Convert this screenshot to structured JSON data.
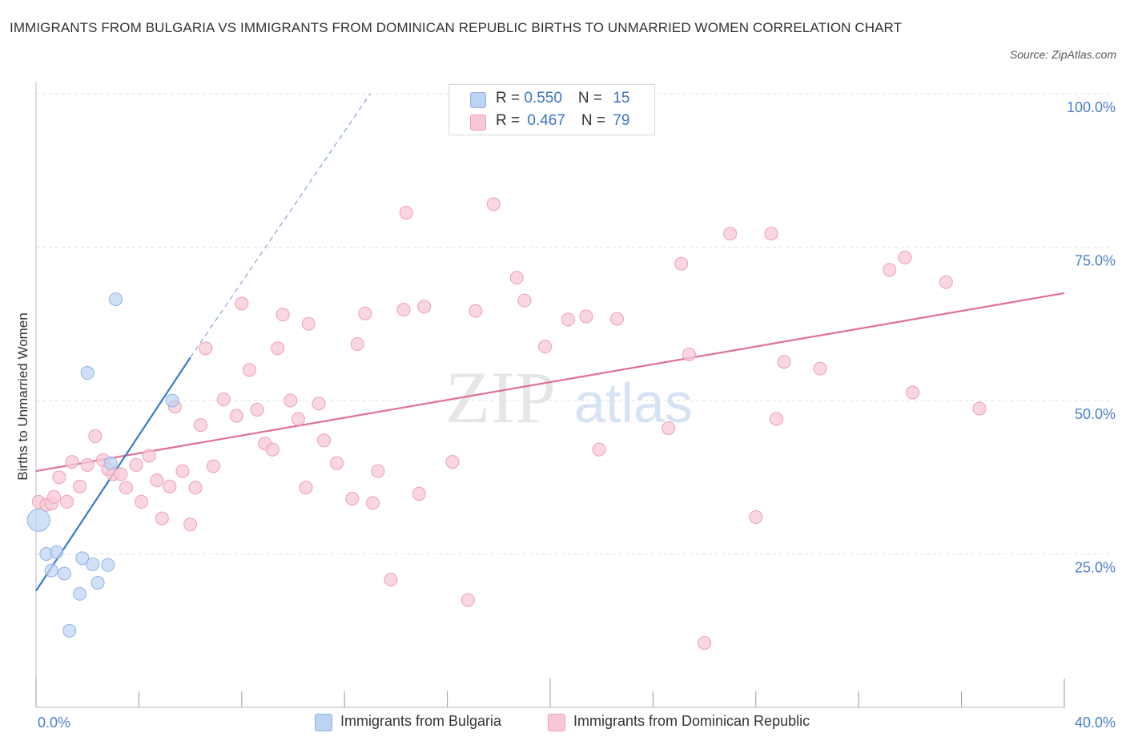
{
  "header": {
    "title": "IMMIGRANTS FROM BULGARIA VS IMMIGRANTS FROM DOMINICAN REPUBLIC BIRTHS TO UNMARRIED WOMEN CORRELATION CHART",
    "source": "Source: ZipAtlas.com"
  },
  "watermark": {
    "zip": "ZIP",
    "atlas": "atlas"
  },
  "legend": {
    "rows": [
      {
        "r_label": "R = ",
        "r_value": "0.550",
        "n_label": "N = ",
        "n_value": "15"
      },
      {
        "r_label": "R = ",
        "r_value": "0.467",
        "n_label": "N = ",
        "n_value": "79"
      }
    ],
    "series": [
      {
        "label": "Immigrants from Bulgaria"
      },
      {
        "label": "Immigrants from Dominican Republic"
      }
    ]
  },
  "chart_data": {
    "type": "scatter",
    "title": "IMMIGRANTS FROM BULGARIA VS IMMIGRANTS FROM DOMINICAN REPUBLIC BIRTHS TO UNMARRIED WOMEN CORRELATION CHART",
    "xlabel": "",
    "ylabel": "Births to Unmarried Women",
    "xlim": [
      0,
      40
    ],
    "ylim": [
      0,
      100
    ],
    "x_tick_labels": [
      "0.0%",
      "40.0%"
    ],
    "y_tick_labels": [
      "25.0%",
      "50.0%",
      "75.0%",
      "100.0%"
    ],
    "y_ticks": [
      25,
      50,
      75,
      100
    ],
    "grid": true,
    "colors": {
      "bulgaria": "#3b78cc",
      "dominican": "#e07096",
      "bulgaria_fill": "#bcd4f4",
      "dominican_fill": "#f8c8d7"
    },
    "series": [
      {
        "name": "Immigrants from Bulgaria",
        "R": 0.55,
        "N": 15,
        "trend": {
          "x": [
            0,
            6
          ],
          "y": [
            19,
            57
          ],
          "dashed_to": [
            13,
            100
          ]
        },
        "points": [
          [
            0.1,
            30.5
          ],
          [
            0.4,
            25
          ],
          [
            0.8,
            25.3
          ],
          [
            0.6,
            22.3
          ],
          [
            1.1,
            21.8
          ],
          [
            1.3,
            12.5
          ],
          [
            1.7,
            18.5
          ],
          [
            1.8,
            24.3
          ],
          [
            2.2,
            23.3
          ],
          [
            2.4,
            20.3
          ],
          [
            2.8,
            23.2
          ],
          [
            2.0,
            54.5
          ],
          [
            3.1,
            66.5
          ],
          [
            5.3,
            50
          ],
          [
            2.9,
            39.8
          ]
        ]
      },
      {
        "name": "Immigrants from Dominican Republic",
        "R": 0.467,
        "N": 79,
        "trend": {
          "x": [
            0,
            40
          ],
          "y": [
            38.5,
            67.5
          ]
        },
        "points": [
          [
            0.1,
            33.5
          ],
          [
            0.4,
            33
          ],
          [
            0.6,
            33.2
          ],
          [
            0.7,
            34.3
          ],
          [
            0.9,
            37.5
          ],
          [
            1.2,
            33.5
          ],
          [
            1.4,
            40
          ],
          [
            1.7,
            36
          ],
          [
            2.0,
            39.5
          ],
          [
            2.3,
            44.2
          ],
          [
            2.6,
            40.3
          ],
          [
            2.8,
            38.8
          ],
          [
            3.0,
            38
          ],
          [
            3.3,
            38
          ],
          [
            3.5,
            35.8
          ],
          [
            3.9,
            39.5
          ],
          [
            4.1,
            33.5
          ],
          [
            4.4,
            41
          ],
          [
            4.7,
            37
          ],
          [
            4.9,
            30.8
          ],
          [
            5.2,
            36
          ],
          [
            5.4,
            49
          ],
          [
            5.7,
            38.5
          ],
          [
            6.0,
            29.8
          ],
          [
            6.2,
            35.8
          ],
          [
            6.4,
            46
          ],
          [
            6.6,
            58.5
          ],
          [
            6.9,
            39.3
          ],
          [
            7.3,
            50.2
          ],
          [
            7.8,
            47.5
          ],
          [
            8.0,
            65.8
          ],
          [
            8.3,
            55
          ],
          [
            8.6,
            48.5
          ],
          [
            8.9,
            43
          ],
          [
            9.2,
            42
          ],
          [
            9.4,
            58.5
          ],
          [
            9.6,
            64
          ],
          [
            9.9,
            50
          ],
          [
            10.2,
            47
          ],
          [
            10.5,
            35.8
          ],
          [
            10.6,
            62.5
          ],
          [
            11.0,
            49.5
          ],
          [
            11.2,
            43.5
          ],
          [
            11.7,
            39.8
          ],
          [
            12.3,
            34
          ],
          [
            12.5,
            59.2
          ],
          [
            12.8,
            64.2
          ],
          [
            13.1,
            33.3
          ],
          [
            13.3,
            38.5
          ],
          [
            13.8,
            20.8
          ],
          [
            14.3,
            64.8
          ],
          [
            14.4,
            80.6
          ],
          [
            14.9,
            34.8
          ],
          [
            15.1,
            65.3
          ],
          [
            16.2,
            40
          ],
          [
            16.8,
            17.5
          ],
          [
            17.1,
            64.6
          ],
          [
            17.8,
            82
          ],
          [
            18.7,
            70
          ],
          [
            19.0,
            66.3
          ],
          [
            19.8,
            58.8
          ],
          [
            20.7,
            63.2
          ],
          [
            21.4,
            63.7
          ],
          [
            21.9,
            42
          ],
          [
            22.6,
            63.3
          ],
          [
            24.6,
            45.5
          ],
          [
            25.1,
            72.3
          ],
          [
            25.4,
            57.5
          ],
          [
            26.0,
            10.5
          ],
          [
            27.0,
            77.2
          ],
          [
            28.0,
            31
          ],
          [
            28.6,
            77.2
          ],
          [
            28.8,
            47
          ],
          [
            29.1,
            56.3
          ],
          [
            30.5,
            55.2
          ],
          [
            33.2,
            71.3
          ],
          [
            33.8,
            73.3
          ],
          [
            34.1,
            51.3
          ],
          [
            35.4,
            69.3
          ],
          [
            36.7,
            48.7
          ]
        ]
      }
    ]
  }
}
